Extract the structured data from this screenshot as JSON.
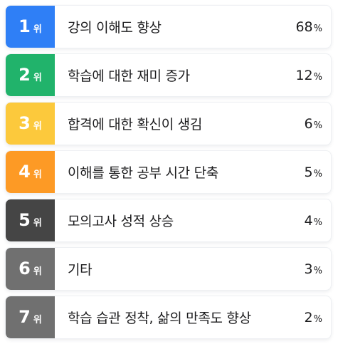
{
  "ranking": {
    "items": [
      {
        "rank": "1",
        "suffix": "위",
        "label": "강의 이해도 향상",
        "percent": "68",
        "unit": "%",
        "color": "#2f7ff6"
      },
      {
        "rank": "2",
        "suffix": "위",
        "label": "학습에 대한 재미 증가",
        "percent": "12",
        "unit": "%",
        "color": "#21b36b"
      },
      {
        "rank": "3",
        "suffix": "위",
        "label": "합격에 대한 확신이 생김",
        "percent": "6",
        "unit": "%",
        "color": "#fcc93c"
      },
      {
        "rank": "4",
        "suffix": "위",
        "label": "이해를 통한 공부 시간 단축",
        "percent": "5",
        "unit": "%",
        "color": "#fd9a25"
      },
      {
        "rank": "5",
        "suffix": "위",
        "label": "모의고사 성적 상승",
        "percent": "4",
        "unit": "%",
        "color": "#454545"
      },
      {
        "rank": "6",
        "suffix": "위",
        "label": "기타",
        "percent": "3",
        "unit": "%",
        "color": "#707070"
      },
      {
        "rank": "7",
        "suffix": "위",
        "label": "학습 습관 정착, 삶의 만족도 향상",
        "percent": "2",
        "unit": "%",
        "color": "#707070"
      }
    ]
  }
}
